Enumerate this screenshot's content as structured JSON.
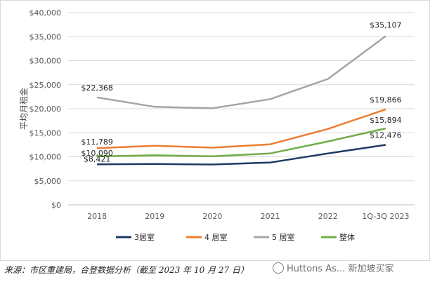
{
  "chart_data": {
    "type": "line",
    "title": "",
    "xlabel": "",
    "ylabel": "平均月租金",
    "ylim": [
      0,
      40000
    ],
    "yticks": [
      "$0",
      "$5,000",
      "$10,000",
      "$15,000",
      "$20,000",
      "$25,000",
      "$30,000",
      "$35,000",
      "$40,000"
    ],
    "categories": [
      "2018",
      "2019",
      "2020",
      "2021",
      "2022",
      "1Q-3Q 2023"
    ],
    "legend_position": "bottom",
    "grid": true,
    "series": [
      {
        "name": "3居室",
        "color": "#1f3864",
        "values": [
          8421,
          8500,
          8400,
          8800,
          10700,
          12476
        ]
      },
      {
        "name": "4 居室",
        "color": "#ed7d31",
        "values": [
          11789,
          12300,
          11900,
          12600,
          15800,
          19866
        ]
      },
      {
        "name": "5 居室",
        "color": "#a5a5a5",
        "values": [
          22368,
          20400,
          20100,
          22000,
          26200,
          35107
        ]
      },
      {
        "name": "整体",
        "color": "#70ad47",
        "values": [
          10090,
          10300,
          10100,
          10700,
          13200,
          15894
        ]
      }
    ],
    "data_labels": [
      {
        "series": 2,
        "index": 0,
        "text": "$22,368"
      },
      {
        "series": 2,
        "index": 5,
        "text": "$35,107"
      },
      {
        "series": 1,
        "index": 0,
        "text": "$11,789"
      },
      {
        "series": 3,
        "index": 0,
        "text": "$10,090"
      },
      {
        "series": 0,
        "index": 0,
        "text": "$8,421"
      },
      {
        "series": 1,
        "index": 5,
        "text": "$19,866"
      },
      {
        "series": 3,
        "index": 5,
        "text": "$15,894"
      },
      {
        "series": 0,
        "index": 5,
        "text": "$12,476"
      }
    ]
  },
  "footer": {
    "source": "来源：市区重建局，合登数据分析（截至 2023 年 10 月 27 日）",
    "watermark": "Huttons As... 新加坡买家"
  }
}
